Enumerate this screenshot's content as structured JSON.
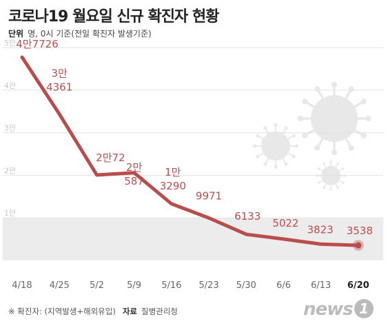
{
  "header": {
    "title": "코로나19 월요일 신규 확진자 현황",
    "unit_label": "단위",
    "unit_text": "명, 0시 기준(전일 확진자 발생기준)"
  },
  "footer": {
    "note": "※ 확진자: (지역발생+해외유입)",
    "source_label": "자료",
    "source": "질병관리청",
    "logo_text": "news",
    "logo_mark": "1"
  },
  "colors": {
    "line": "#b94d4d",
    "label": "#b94d4d",
    "grid": "#e2e2e2",
    "band": "#ececec",
    "virus": "#e8e8e8"
  },
  "chart_data": {
    "type": "line",
    "title": "코로나19 월요일 신규 확진자 현황",
    "x": [
      "4/18",
      "4/25",
      "5/2",
      "5/9",
      "5/16",
      "5/23",
      "5/30",
      "6/6",
      "6/13",
      "6/20"
    ],
    "values": [
      47726,
      34361,
      20072,
      20587,
      13290,
      9971,
      6133,
      5022,
      3823,
      3538
    ],
    "value_labels": [
      [
        "4만7726"
      ],
      [
        "3만",
        "4361"
      ],
      [
        "2만72"
      ],
      [
        "2만",
        "587"
      ],
      [
        "1만",
        "3290"
      ],
      [
        "9971"
      ],
      [
        "6133"
      ],
      [
        "5022"
      ],
      [
        "3823"
      ],
      [
        "3538"
      ]
    ],
    "y_ticks": [
      {
        "value": 10000,
        "label": "1만"
      },
      {
        "value": 20000,
        "label": "2만"
      },
      {
        "value": 30000,
        "label": "3만"
      },
      {
        "value": 40000,
        "label": "4만"
      },
      {
        "value": 50000,
        "label": "5만"
      }
    ],
    "ylim": [
      0,
      50000
    ],
    "highlight_last": true,
    "grid": true
  }
}
